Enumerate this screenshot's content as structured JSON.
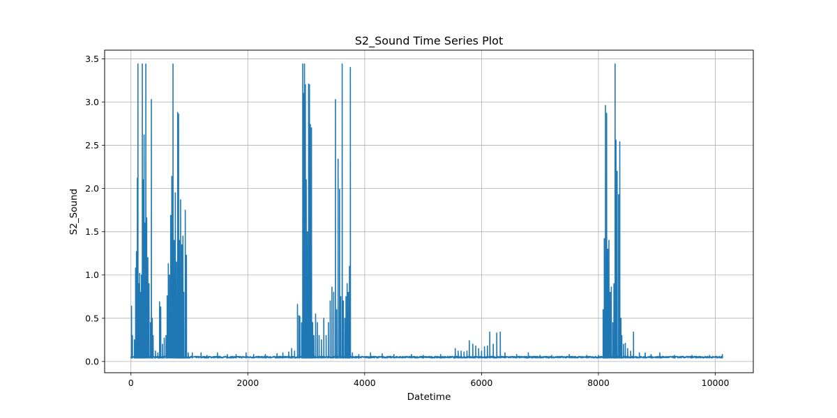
{
  "chart_data": {
    "type": "line",
    "title": "S2_Sound Time Series Plot",
    "xlabel": "Datetime",
    "ylabel": "S2_Sound",
    "xlim": [
      -450,
      10650
    ],
    "ylim": [
      -0.13,
      3.6
    ],
    "xticks": [
      0,
      2000,
      4000,
      6000,
      8000,
      10000
    ],
    "xtick_labels": [
      "0",
      "2000",
      "4000",
      "6000",
      "8000",
      "10000"
    ],
    "yticks": [
      0.0,
      0.5,
      1.0,
      1.5,
      2.0,
      2.5,
      3.0,
      3.5
    ],
    "ytick_labels": [
      "0.0",
      "0.5",
      "1.0",
      "1.5",
      "2.0",
      "2.5",
      "3.0",
      "3.5"
    ],
    "grid": true,
    "line_color": "#1f77b4",
    "series": [
      {
        "x_start": 0,
        "x_end": 10130,
        "baseline": 0.05,
        "peaks": [
          [
            10,
            0.64
          ],
          [
            25,
            0.3
          ],
          [
            60,
            0.25
          ],
          [
            80,
            1.08
          ],
          [
            95,
            1.27
          ],
          [
            110,
            2.12
          ],
          [
            120,
            3.44
          ],
          [
            135,
            0.9
          ],
          [
            150,
            1.02
          ],
          [
            165,
            0.8
          ],
          [
            180,
            1.0
          ],
          [
            195,
            3.44
          ],
          [
            210,
            2.1
          ],
          [
            225,
            2.62
          ],
          [
            240,
            1.6
          ],
          [
            255,
            3.44
          ],
          [
            270,
            1.66
          ],
          [
            290,
            1.2
          ],
          [
            310,
            0.9
          ],
          [
            335,
            0.45
          ],
          [
            350,
            3.03
          ],
          [
            365,
            0.5
          ],
          [
            380,
            0.3
          ],
          [
            420,
            0.12
          ],
          [
            460,
            0.1
          ],
          [
            490,
            0.69
          ],
          [
            510,
            0.63
          ],
          [
            540,
            0.2
          ],
          [
            570,
            0.27
          ],
          [
            600,
            0.3
          ],
          [
            620,
            0.76
          ],
          [
            640,
            1.13
          ],
          [
            660,
            1.0
          ],
          [
            680,
            1.69
          ],
          [
            700,
            2.14
          ],
          [
            720,
            3.44
          ],
          [
            740,
            1.4
          ],
          [
            760,
            1.95
          ],
          [
            780,
            1.15
          ],
          [
            800,
            2.88
          ],
          [
            815,
            2.86
          ],
          [
            830,
            1.4
          ],
          [
            850,
            1.87
          ],
          [
            870,
            1.35
          ],
          [
            890,
            1.45
          ],
          [
            905,
            0.8
          ],
          [
            930,
            1.75
          ],
          [
            950,
            1.23
          ],
          [
            980,
            0.1
          ],
          [
            1050,
            0.1
          ],
          [
            1200,
            0.1
          ],
          [
            1300,
            0.07
          ],
          [
            1480,
            0.1
          ],
          [
            1650,
            0.08
          ],
          [
            1800,
            0.08
          ],
          [
            1970,
            0.1
          ],
          [
            2100,
            0.08
          ],
          [
            2300,
            0.08
          ],
          [
            2500,
            0.09
          ],
          [
            2600,
            0.1
          ],
          [
            2700,
            0.11
          ],
          [
            2750,
            0.15
          ],
          [
            2800,
            0.12
          ],
          [
            2850,
            0.66
          ],
          [
            2875,
            0.53
          ],
          [
            2890,
            0.52
          ],
          [
            2920,
            0.45
          ],
          [
            2940,
            3.44
          ],
          [
            2955,
            3.1
          ],
          [
            2970,
            3.44
          ],
          [
            2985,
            3.2
          ],
          [
            3000,
            2.1
          ],
          [
            3020,
            1.5
          ],
          [
            3040,
            3.21
          ],
          [
            3055,
            3.2
          ],
          [
            3070,
            2.74
          ],
          [
            3090,
            2.7
          ],
          [
            3110,
            0.45
          ],
          [
            3130,
            0.3
          ],
          [
            3160,
            0.55
          ],
          [
            3190,
            0.45
          ],
          [
            3220,
            0.3
          ],
          [
            3260,
            0.25
          ],
          [
            3300,
            0.5
          ],
          [
            3340,
            0.3
          ],
          [
            3380,
            0.45
          ],
          [
            3410,
            0.7
          ],
          [
            3440,
            0.86
          ],
          [
            3470,
            0.8
          ],
          [
            3500,
            3.03
          ],
          [
            3520,
            0.6
          ],
          [
            3545,
            2.34
          ],
          [
            3570,
            1.99
          ],
          [
            3590,
            0.75
          ],
          [
            3615,
            3.44
          ],
          [
            3635,
            0.7
          ],
          [
            3660,
            0.5
          ],
          [
            3680,
            0.75
          ],
          [
            3700,
            0.9
          ],
          [
            3720,
            0.8
          ],
          [
            3740,
            1.1
          ],
          [
            3755,
            3.4
          ],
          [
            3790,
            0.1
          ],
          [
            3900,
            0.08
          ],
          [
            4100,
            0.1
          ],
          [
            4300,
            0.09
          ],
          [
            4500,
            0.08
          ],
          [
            4800,
            0.08
          ],
          [
            5000,
            0.07
          ],
          [
            5300,
            0.08
          ],
          [
            5550,
            0.15
          ],
          [
            5600,
            0.12
          ],
          [
            5650,
            0.12
          ],
          [
            5700,
            0.11
          ],
          [
            5750,
            0.12
          ],
          [
            5790,
            0.24
          ],
          [
            5850,
            0.2
          ],
          [
            5900,
            0.18
          ],
          [
            5950,
            0.15
          ],
          [
            6000,
            0.12
          ],
          [
            6050,
            0.17
          ],
          [
            6100,
            0.18
          ],
          [
            6140,
            0.34
          ],
          [
            6200,
            0.2
          ],
          [
            6260,
            0.33
          ],
          [
            6320,
            0.34
          ],
          [
            6400,
            0.1
          ],
          [
            6600,
            0.08
          ],
          [
            6800,
            0.1
          ],
          [
            7000,
            0.07
          ],
          [
            7200,
            0.07
          ],
          [
            7500,
            0.08
          ],
          [
            7800,
            0.07
          ],
          [
            8000,
            0.07
          ],
          [
            8080,
            0.6
          ],
          [
            8100,
            1.42
          ],
          [
            8120,
            2.96
          ],
          [
            8140,
            2.87
          ],
          [
            8160,
            1.3
          ],
          [
            8180,
            1.4
          ],
          [
            8200,
            0.8
          ],
          [
            8220,
            0.86
          ],
          [
            8245,
            0.45
          ],
          [
            8265,
            0.9
          ],
          [
            8285,
            3.44
          ],
          [
            8300,
            2.56
          ],
          [
            8320,
            2.2
          ],
          [
            8345,
            1.93
          ],
          [
            8365,
            2.54
          ],
          [
            8385,
            0.5
          ],
          [
            8400,
            0.3
          ],
          [
            8430,
            0.2
          ],
          [
            8460,
            0.21
          ],
          [
            8500,
            0.15
          ],
          [
            8550,
            0.12
          ],
          [
            8600,
            0.34
          ],
          [
            8700,
            0.1
          ],
          [
            8800,
            0.1
          ],
          [
            8900,
            0.08
          ],
          [
            9050,
            0.1
          ],
          [
            9300,
            0.07
          ],
          [
            9600,
            0.07
          ],
          [
            9900,
            0.07
          ],
          [
            10120,
            0.08
          ]
        ]
      }
    ]
  }
}
